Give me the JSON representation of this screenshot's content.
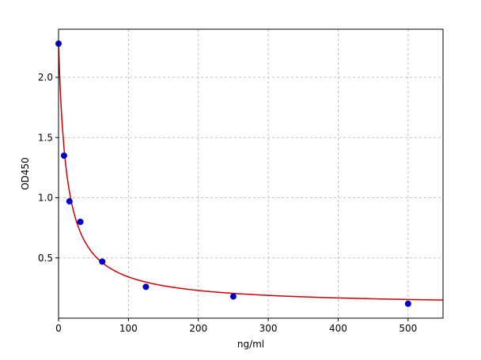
{
  "chart_data": {
    "type": "scatter",
    "title": "",
    "xlabel": "ng/ml",
    "ylabel": "OD450",
    "xlim": [
      0,
      550
    ],
    "ylim": [
      0,
      2.4
    ],
    "xticks": [
      0,
      100,
      200,
      300,
      400,
      500
    ],
    "xtick_labels": [
      "0",
      "100",
      "200",
      "300",
      "400",
      "500"
    ],
    "yticks": [
      0.5,
      1.0,
      1.5,
      2.0
    ],
    "ytick_labels": [
      "0.5",
      "1.0",
      "1.5",
      "2.0"
    ],
    "grid": true,
    "grid_style": "dashed",
    "legend": "none",
    "points": {
      "x": [
        0,
        7.8,
        15.6,
        31.2,
        62.5,
        125,
        250,
        500
      ],
      "y": [
        2.28,
        1.35,
        0.97,
        0.8,
        0.47,
        0.26,
        0.18,
        0.12
      ],
      "color": "#0000cc"
    },
    "fit_curve": {
      "model": "4PL",
      "color": "#cc0000",
      "params": {
        "A": 2.28,
        "B": 0.98,
        "C": 12.0,
        "D": 0.1
      }
    }
  }
}
